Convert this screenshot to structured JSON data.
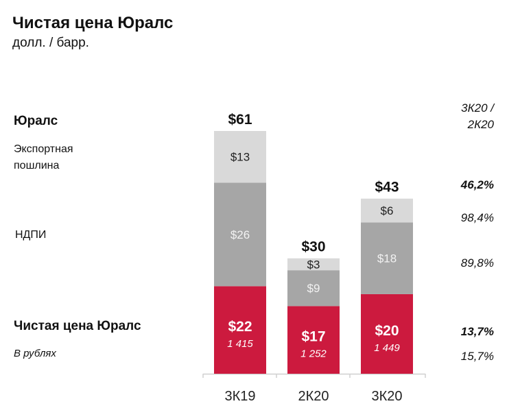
{
  "header": {
    "title": "Чистая цена Юралс",
    "subtitle": "долл. / барр."
  },
  "legend_rows": {
    "urals": "Юралс",
    "export_duty": "Экспортная пошлина",
    "ndpi": "НДПИ",
    "net_price": "Чистая цена Юралс",
    "in_rubles": "В рублях"
  },
  "change": {
    "header_line1": "3К20 /",
    "header_line2": "2К20",
    "urals": "46,2%",
    "export_duty": "98,4%",
    "ndpi": "89,8%",
    "net_price": "13,7%",
    "in_rubles": "15,7%"
  },
  "chart_data": {
    "type": "bar",
    "stacked": true,
    "categories": [
      "3К19",
      "2К20",
      "3К20"
    ],
    "series": [
      {
        "name": "Чистая цена Юралс",
        "values": [
          22,
          17,
          20
        ],
        "labels": [
          "$22",
          "$17",
          "$20"
        ],
        "color": "#cc1a3e"
      },
      {
        "name": "НДПИ",
        "values": [
          26,
          9,
          18
        ],
        "labels": [
          "$26",
          "$9",
          "$18"
        ],
        "color": "#a6a6a6"
      },
      {
        "name": "Экспортная пошлина",
        "values": [
          13,
          3,
          6
        ],
        "labels": [
          "$13",
          "$3",
          "$6"
        ],
        "color": "#d9d9d9"
      }
    ],
    "totals": [
      61,
      30,
      43
    ],
    "total_labels": [
      "$61",
      "$30",
      "$43"
    ],
    "rub_values": [
      "1 415",
      "1 252",
      "1 449"
    ],
    "ylim": [
      0,
      61
    ]
  }
}
